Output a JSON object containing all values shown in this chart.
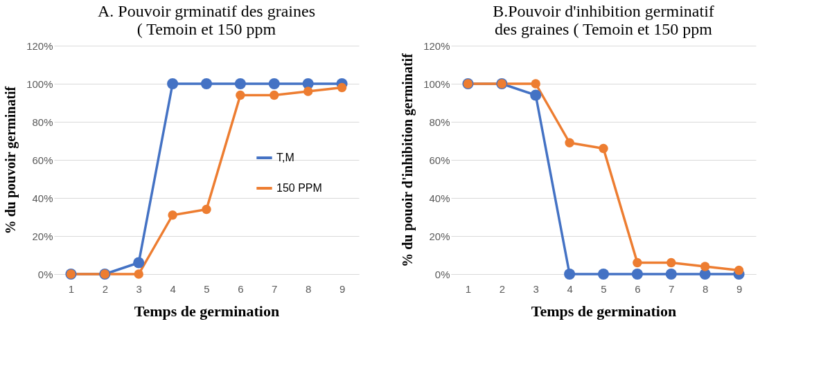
{
  "chart_data": [
    {
      "type": "line",
      "title": "A. Pouvoir grminatif des graines ( Temoin  et 150 ppm",
      "xlabel": "Temps de germination",
      "ylabel": "% du pouvoir germinatif",
      "categories": [
        "1",
        "2",
        "3",
        "4",
        "5",
        "6",
        "7",
        "8",
        "9"
      ],
      "series": [
        {
          "name": "T,M",
          "color": "#4472c4",
          "values": [
            0,
            0,
            6,
            100,
            100,
            100,
            100,
            100,
            100
          ]
        },
        {
          "name": "150 PPM",
          "color": "#ed7d31",
          "values": [
            0,
            0,
            0,
            31,
            34,
            94,
            94,
            96,
            98
          ]
        }
      ],
      "ylim": [
        0,
        120
      ],
      "yticks": [
        {
          "value": 0,
          "label": "0%"
        },
        {
          "value": 20,
          "label": "20%"
        },
        {
          "value": 40,
          "label": "40%"
        },
        {
          "value": 60,
          "label": "60%"
        },
        {
          "value": 80,
          "label": "80%"
        },
        {
          "value": 100,
          "label": "100%"
        },
        {
          "value": 120,
          "label": "120%"
        }
      ],
      "grid": "y",
      "legend": "right",
      "marker": "circle",
      "line_style": "solid"
    },
    {
      "type": "line",
      "title": "B.Pouvoir d'inhibition germinatif des graines ( Temoin et 150 ppm",
      "xlabel": "Temps de germination",
      "ylabel": "% du pouoir d'inhibition germinatif",
      "categories": [
        "1",
        "2",
        "3",
        "4",
        "5",
        "6",
        "7",
        "8",
        "9"
      ],
      "series": [
        {
          "name": "T,M",
          "color": "#4472c4",
          "values": [
            100,
            100,
            94,
            0,
            0,
            0,
            0,
            0,
            0
          ]
        },
        {
          "name": "150 PPM",
          "color": "#ed7d31",
          "values": [
            100,
            100,
            100,
            69,
            66,
            6,
            6,
            4,
            2
          ]
        }
      ],
      "ylim": [
        0,
        120
      ],
      "yticks": [
        {
          "value": 0,
          "label": "0%"
        },
        {
          "value": 20,
          "label": "20%"
        },
        {
          "value": 40,
          "label": "40%"
        },
        {
          "value": 60,
          "label": "60%"
        },
        {
          "value": 80,
          "label": "80%"
        },
        {
          "value": 100,
          "label": "100%"
        },
        {
          "value": 120,
          "label": "120%"
        }
      ],
      "grid": "y",
      "legend": "right",
      "marker": "circle",
      "line_style": "solid"
    }
  ]
}
